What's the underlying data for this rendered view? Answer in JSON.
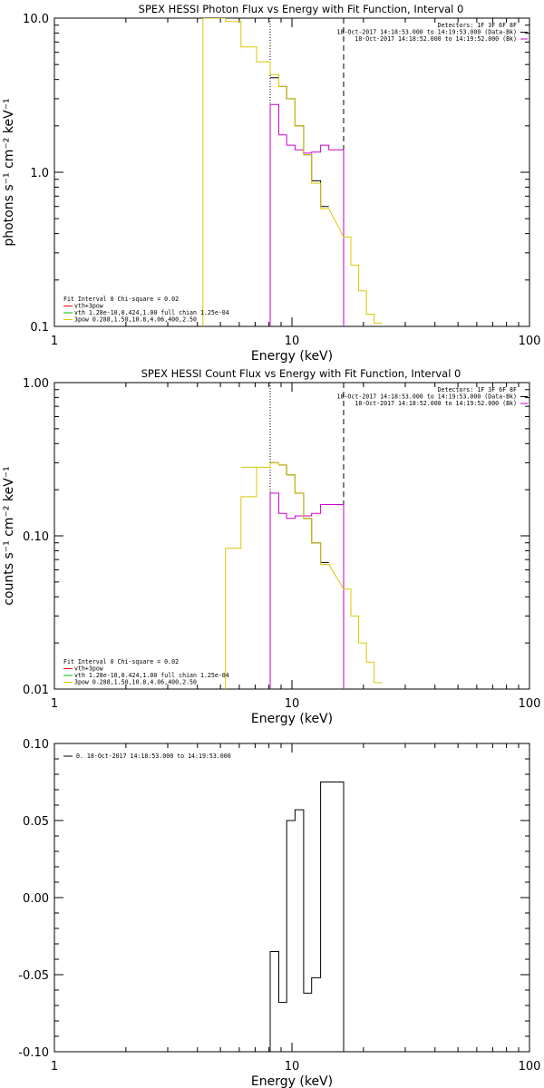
{
  "chart_data": [
    {
      "type": "line",
      "title": "SPEX HESSI Photon Flux vs Energy with Fit Function, Interval 0",
      "xlabel": "Energy (keV)",
      "ylabel": "photons s⁻¹ cm⁻² keV⁻¹",
      "xscale": "log",
      "yscale": "log",
      "xlim": [
        1,
        100
      ],
      "ylim": [
        0.1,
        10
      ],
      "xticks": [
        "1",
        "10",
        "100"
      ],
      "yticks": [
        "10.0",
        "1.0",
        "0.1"
      ],
      "ytick_values": [
        10,
        1,
        0.1
      ],
      "vlines": [
        {
          "x": 8.1,
          "style": "dotted"
        },
        {
          "x": 16.5,
          "style": "dashed"
        }
      ],
      "legend_right": [
        "Detectors: 1F 3F 6F 8F",
        "18-Oct-2017 14:18:53.000 to 14:19:53.000 (Data-Bk)",
        "18-Oct-2017 14:18:52.000 to 14:19:52.000 (Bk)"
      ],
      "legend_right_colors": [
        "",
        "#000000",
        "#cc00cc"
      ],
      "legend_left": [
        "Fit Interval  0    Chi-square = 0.02",
        "vth+3pow",
        "vth 1.28e-10,0.424,1.00  full chian 1.25e-04",
        "3pow 0.288,1.50,10.8,4.06,400,2.50"
      ],
      "legend_left_colors": [
        "",
        "#ff0000",
        "#00bb00",
        "#d8c800"
      ],
      "series": [
        {
          "color": "#000000",
          "step": true,
          "edges": [
            8.1,
            8.8,
            9.5,
            10.3,
            11.2,
            12.1,
            13.2,
            14.3,
            15.4,
            16.5
          ],
          "values": [
            4.1,
            3.6,
            3.0,
            2.0,
            1.3,
            0.88,
            0.6,
            0.0,
            0.0
          ]
        },
        {
          "color": "#cc00cc",
          "step": true,
          "edges": [
            8.1,
            8.8,
            9.5,
            10.3,
            11.2,
            12.1,
            13.2,
            14.3,
            15.4,
            16.5
          ],
          "values": [
            2.75,
            1.75,
            1.5,
            1.4,
            1.33,
            1.35,
            1.5,
            1.4,
            1.4
          ],
          "drop_x": 8.1,
          "tail_x": 16.5
        },
        {
          "color": "#d8c800",
          "step": true,
          "edges": [
            4.22,
            5.25,
            6.1,
            7.1,
            8.1,
            8.8,
            9.5,
            10.3,
            11.2,
            12.1,
            13.2,
            14.3,
            15.4,
            16.5,
            17.7,
            19.1,
            20.6,
            22.2,
            24.0
          ],
          "values": [
            20,
            9.5,
            6.5,
            5.2,
            4.3,
            3.6,
            3.0,
            2.0,
            1.3,
            0.85,
            0.58,
            0.0,
            0.0,
            0.38,
            0.25,
            0.17,
            0.12,
            0.105
          ],
          "start_x": 4.22
        }
      ]
    },
    {
      "type": "line",
      "title": "SPEX HESSI Count Flux vs Energy with Fit Function, Interval 0",
      "xlabel": "Energy (keV)",
      "ylabel": "counts s⁻¹ cm⁻² keV⁻¹",
      "xscale": "log",
      "yscale": "log",
      "xlim": [
        1,
        100
      ],
      "ylim": [
        0.01,
        1
      ],
      "xticks": [
        "1",
        "10",
        "100"
      ],
      "yticks": [
        "1.00",
        "0.10",
        "0.01"
      ],
      "ytick_values": [
        1,
        0.1,
        0.01
      ],
      "vlines": [
        {
          "x": 8.1,
          "style": "dotted"
        },
        {
          "x": 16.5,
          "style": "dashed"
        }
      ],
      "legend_right": [
        "Detectors: 1F 3F 6F 8F",
        "18-Oct-2017 14:18:53.000 to 14:19:53.000 (Data-Bk)",
        "18-Oct-2017 14:18:52.000 to 14:19:52.000 (Bk)"
      ],
      "legend_right_colors": [
        "",
        "#000000",
        "#cc00cc"
      ],
      "legend_left": [
        "Fit Interval  0    Chi-square = 0.02",
        "vth+3pow",
        "vth 1.28e-10,0.424,1.00  full chian 1.25e-04",
        "3pow 0.288,1.50,10.8,4.06,400,2.50"
      ],
      "legend_left_colors": [
        "",
        "#ff0000",
        "#00bb00",
        "#d8c800"
      ],
      "series": [
        {
          "color": "#000000",
          "step": true,
          "edges": [
            8.1,
            8.8,
            9.5,
            10.3,
            11.2,
            12.1,
            13.2,
            14.3,
            15.4,
            16.5
          ],
          "values": [
            0.3,
            0.29,
            0.25,
            0.19,
            0.13,
            0.09,
            0.067,
            0.0,
            0.0
          ]
        },
        {
          "color": "#cc00cc",
          "step": true,
          "edges": [
            8.1,
            8.8,
            9.5,
            10.3,
            11.2,
            12.1,
            13.2,
            14.3,
            15.4,
            16.5
          ],
          "values": [
            0.19,
            0.14,
            0.13,
            0.135,
            0.135,
            0.14,
            0.16,
            0.16,
            0.16
          ],
          "drop_x": 8.1,
          "tail_x": 16.5
        },
        {
          "color": "#d8c800",
          "step": true,
          "edges": [
            5.25,
            6.1,
            7.1,
            8.1,
            8.8,
            9.5,
            10.3,
            11.2,
            12.1,
            13.2,
            14.3,
            15.4,
            16.5,
            17.7,
            19.1,
            20.6,
            22.2,
            24.0
          ],
          "values": [
            0.083,
            0.18,
            0.28,
            0.3,
            0.29,
            0.25,
            0.19,
            0.13,
            0.09,
            0.065,
            0.0,
            0.0,
            0.045,
            0.03,
            0.02,
            0.015,
            0.011
          ],
          "start_x": 5.25,
          "start_y": 0.01
        },
        {
          "color": "#d8c800",
          "step": true,
          "edges": [
            6.1,
            7.1
          ],
          "values": [
            0.28
          ]
        }
      ]
    },
    {
      "type": "line",
      "title": "",
      "xlabel": "Energy (keV)",
      "ylabel": "",
      "xscale": "log",
      "yscale": "linear",
      "xlim": [
        1,
        100
      ],
      "ylim": [
        -0.1,
        0.1
      ],
      "xticks": [
        "1",
        "10",
        "100"
      ],
      "yticks": [
        "0.10",
        "0.05",
        "0.00",
        "-0.05",
        "-0.10"
      ],
      "ytick_values": [
        0.1,
        0.05,
        0,
        -0.05,
        -0.1
      ],
      "vlines": [],
      "legend_right": [],
      "legend_right_colors": [],
      "legend_left": [],
      "legend_left_colors": [],
      "legend_top": "0. 18-Oct-2017 14:18:53.000 to 14:19:53.000",
      "series": [
        {
          "color": "#000000",
          "step": true,
          "edges": [
            8.1,
            8.8,
            9.5,
            10.3,
            11.2,
            12.1,
            13.2,
            14.3,
            15.4,
            16.5
          ],
          "values": [
            -0.035,
            -0.068,
            0.05,
            0.057,
            -0.062,
            -0.052,
            0.075,
            0.075,
            0.075
          ],
          "start_y": -0.1,
          "end_y": -0.1
        }
      ]
    }
  ]
}
